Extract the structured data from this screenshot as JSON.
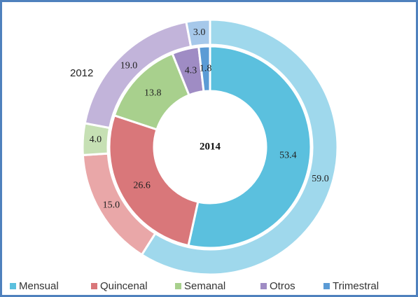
{
  "chart_data": {
    "type": "donut",
    "categories": [
      "Mensual",
      "Quincenal",
      "Semanal",
      "Otros",
      "Trimestral"
    ],
    "colors": [
      "#5bc0de",
      "#d9777a",
      "#a8d08d",
      "#9f8cc4",
      "#5b9bd5"
    ],
    "series": [
      {
        "name": "2012",
        "values": [
          59.0,
          15.0,
          4.0,
          19.0,
          3.0
        ],
        "value_labels": [
          "59.0",
          "15.0",
          "4.0",
          "19.0",
          "3.0"
        ],
        "colors": [
          "#9fd8ec",
          "#e9a7a8",
          "#c6e0b4",
          "#c2b4da",
          "#a6c8ea"
        ]
      },
      {
        "name": "2014",
        "values": [
          53.4,
          26.6,
          13.8,
          4.3,
          1.8
        ],
        "value_labels": [
          "53.4",
          "26.6",
          "13.8",
          "4.3",
          "1.8"
        ],
        "colors": [
          "#5bc0de",
          "#d9777a",
          "#a8d08d",
          "#9f8cc4",
          "#5b9bd5"
        ]
      }
    ]
  }
}
